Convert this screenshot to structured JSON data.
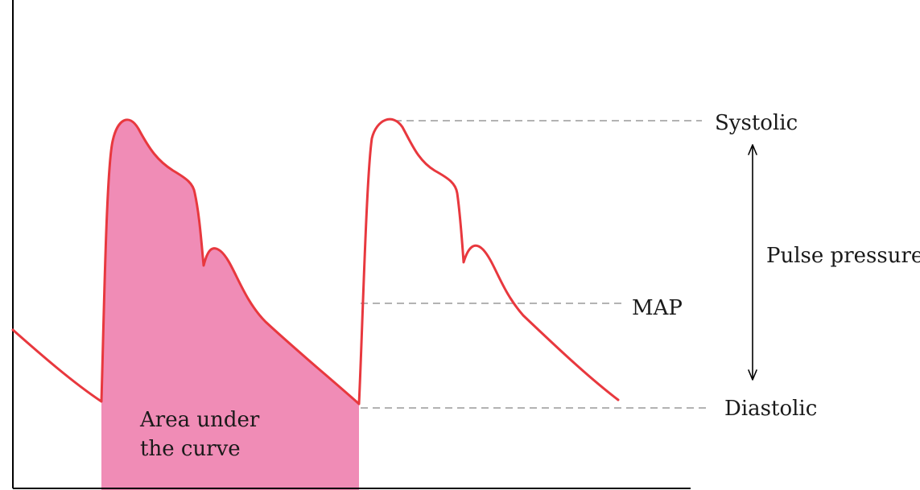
{
  "labels": {
    "systolic": "Systolic",
    "pulse_pressure": "Pulse pressure",
    "map": "MAP",
    "diastolic": "Diastolic",
    "area_line1": "Area under",
    "area_line2": "the curve"
  },
  "colors": {
    "curve": "#e8383e",
    "area_fill": "#f08cb6",
    "axis": "#000000",
    "dashed": "#9a9a9a",
    "text": "#1a1a1a"
  }
}
